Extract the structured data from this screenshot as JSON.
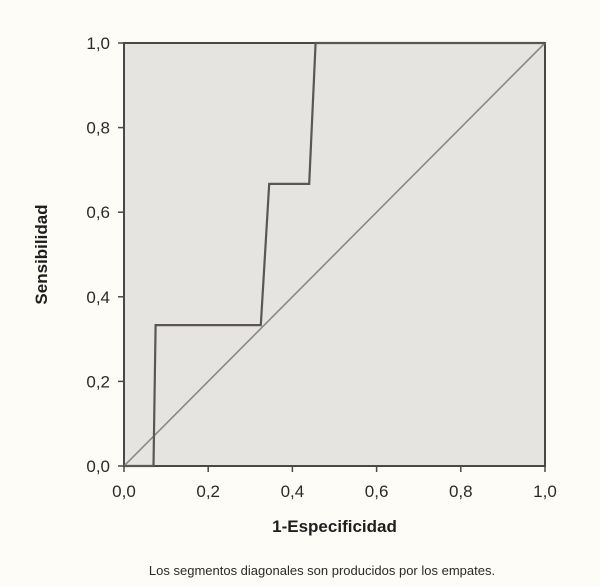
{
  "chart_data": {
    "type": "line",
    "xlabel": "1-Especificidad",
    "ylabel": "Sensibilidad",
    "xlim": [
      0,
      1
    ],
    "ylim": [
      0,
      1
    ],
    "x_ticks": [
      "0,0",
      "0,2",
      "0,4",
      "0,6",
      "0,8",
      "1,0"
    ],
    "y_ticks": [
      "0,0",
      "0,2",
      "0,4",
      "0,6",
      "0,8",
      "1,0"
    ],
    "grid": false,
    "series": [
      {
        "kind": "roc-curve",
        "points": [
          [
            0.0,
            0.0
          ],
          [
            0.07,
            0.0
          ],
          [
            0.075,
            0.333
          ],
          [
            0.325,
            0.333
          ],
          [
            0.345,
            0.667
          ],
          [
            0.44,
            0.667
          ],
          [
            0.455,
            1.0
          ],
          [
            1.0,
            1.0
          ]
        ]
      },
      {
        "kind": "reference-diagonal",
        "points": [
          [
            0.0,
            0.0
          ],
          [
            1.0,
            1.0
          ]
        ]
      }
    ],
    "annotation": "Los segmentos diagonales son producidos por los empates."
  },
  "colors": {
    "page_background": "#fdfcf6",
    "plot_background": "#e6e4e1",
    "frame": "#4a4747",
    "roc_curve": "#5b5656",
    "diagonal": "#8a8888",
    "text": "#2a2a2a"
  }
}
